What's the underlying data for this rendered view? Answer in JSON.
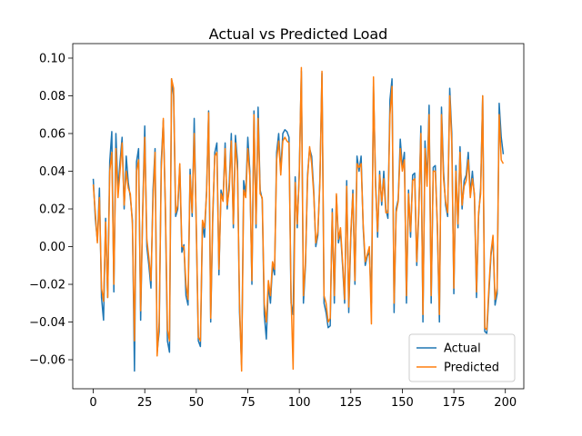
{
  "chart_data": {
    "type": "line",
    "title": "Actual vs Predicted Load",
    "x": [
      0,
      1,
      2,
      3,
      4,
      5,
      6,
      7,
      8,
      9,
      10,
      11,
      12,
      13,
      14,
      15,
      16,
      17,
      18,
      19,
      20,
      21,
      22,
      23,
      24,
      25,
      26,
      27,
      28,
      29,
      30,
      31,
      32,
      33,
      34,
      35,
      36,
      37,
      38,
      39,
      40,
      41,
      42,
      43,
      44,
      45,
      46,
      47,
      48,
      49,
      50,
      51,
      52,
      53,
      54,
      55,
      56,
      57,
      58,
      59,
      60,
      61,
      62,
      63,
      64,
      65,
      66,
      67,
      68,
      69,
      70,
      71,
      72,
      73,
      74,
      75,
      76,
      77,
      78,
      79,
      80,
      81,
      82,
      83,
      84,
      85,
      86,
      87,
      88,
      89,
      90,
      91,
      92,
      93,
      94,
      95,
      96,
      97,
      98,
      99,
      100,
      101,
      102,
      103,
      104,
      105,
      106,
      107,
      108,
      109,
      110,
      111,
      112,
      113,
      114,
      115,
      116,
      117,
      118,
      119,
      120,
      121,
      122,
      123,
      124,
      125,
      126,
      127,
      128,
      129,
      130,
      131,
      132,
      133,
      134,
      135,
      136,
      137,
      138,
      139,
      140,
      141,
      142,
      143,
      144,
      145,
      146,
      147,
      148,
      149,
      150,
      151,
      152,
      153,
      154,
      155,
      156,
      157,
      158,
      159,
      160,
      161,
      162,
      163,
      164,
      165,
      166,
      167,
      168,
      169,
      170,
      171,
      172,
      173,
      174,
      175,
      176,
      177,
      178,
      179,
      180,
      181,
      182,
      183,
      184,
      185,
      186,
      187,
      188,
      189,
      190,
      191,
      192,
      193,
      194,
      195,
      196,
      197,
      198,
      199
    ],
    "series": [
      {
        "name": "Actual",
        "color": "#1f77b4",
        "values": [
          0.036,
          0.015,
          0.003,
          0.031,
          -0.027,
          -0.039,
          0.015,
          -0.027,
          0.045,
          0.061,
          -0.024,
          0.06,
          0.03,
          0.045,
          0.058,
          0.02,
          0.048,
          0.034,
          0.026,
          0.014,
          -0.066,
          0.045,
          0.052,
          -0.039,
          0.02,
          0.064,
          0.0,
          -0.01,
          -0.022,
          0.03,
          0.052,
          -0.056,
          -0.045,
          0.045,
          0.067,
          0.02,
          -0.05,
          -0.056,
          0.089,
          0.08,
          0.016,
          0.02,
          0.043,
          -0.003,
          0.001,
          -0.026,
          -0.031,
          0.041,
          0.016,
          0.068,
          0.01,
          -0.05,
          -0.053,
          0.012,
          0.005,
          0.03,
          0.072,
          -0.04,
          0.015,
          0.05,
          0.055,
          -0.015,
          0.03,
          0.025,
          0.055,
          0.02,
          0.034,
          0.06,
          0.01,
          0.059,
          0.045,
          -0.035,
          -0.063,
          0.035,
          0.028,
          0.058,
          0.04,
          -0.02,
          0.072,
          0.01,
          0.074,
          0.03,
          0.025,
          -0.036,
          -0.049,
          -0.02,
          -0.03,
          -0.01,
          -0.015,
          0.05,
          0.06,
          0.04,
          0.06,
          0.062,
          0.061,
          0.058,
          -0.03,
          -0.036,
          0.037,
          0.01,
          0.04,
          0.093,
          -0.03,
          -0.01,
          0.038,
          0.052,
          0.048,
          0.03,
          0.0,
          0.006,
          0.036,
          0.092,
          -0.03,
          -0.035,
          -0.043,
          -0.042,
          0.02,
          -0.03,
          0.027,
          0.002,
          0.008,
          -0.01,
          -0.03,
          0.035,
          -0.035,
          0.005,
          0.03,
          -0.02,
          0.048,
          0.04,
          0.048,
          0.01,
          -0.01,
          -0.005,
          -0.003,
          -0.03,
          0.085,
          0.035,
          0.005,
          0.04,
          0.022,
          0.04,
          0.02,
          0.015,
          0.078,
          0.089,
          -0.035,
          0.02,
          0.025,
          0.057,
          0.042,
          0.05,
          -0.03,
          0.03,
          0.005,
          0.038,
          0.039,
          -0.01,
          0.018,
          0.064,
          -0.04,
          0.056,
          0.035,
          0.075,
          -0.03,
          0.042,
          0.043,
          0.01,
          -0.04,
          0.074,
          0.04,
          0.022,
          0.016,
          0.084,
          0.06,
          -0.025,
          0.043,
          0.01,
          0.053,
          0.02,
          0.035,
          0.038,
          0.05,
          0.028,
          0.04,
          0.026,
          -0.027,
          0.016,
          0.031,
          0.08,
          -0.045,
          -0.046,
          -0.025,
          -0.005,
          0.005,
          -0.031,
          -0.025,
          0.076,
          0.058,
          0.049
        ]
      },
      {
        "name": "Predicted",
        "color": "#ff7f0e",
        "values": [
          0.033,
          0.018,
          0.002,
          0.026,
          -0.022,
          -0.029,
          0.013,
          -0.027,
          0.04,
          0.05,
          -0.02,
          0.052,
          0.026,
          0.04,
          0.055,
          0.022,
          0.04,
          0.031,
          0.028,
          0.012,
          -0.05,
          0.04,
          0.046,
          -0.034,
          0.018,
          0.058,
          0.004,
          -0.006,
          -0.018,
          0.025,
          0.05,
          -0.058,
          -0.04,
          0.04,
          0.068,
          0.022,
          -0.044,
          -0.05,
          0.089,
          0.084,
          0.018,
          0.022,
          0.044,
          0.0,
          0.0,
          -0.02,
          -0.028,
          0.038,
          0.018,
          0.06,
          0.012,
          -0.048,
          -0.05,
          0.014,
          0.01,
          0.028,
          0.071,
          -0.038,
          0.018,
          0.048,
          0.05,
          -0.012,
          0.028,
          0.024,
          0.052,
          0.022,
          0.03,
          0.056,
          0.012,
          0.055,
          0.04,
          -0.03,
          -0.066,
          0.03,
          0.026,
          0.052,
          0.037,
          -0.018,
          0.07,
          0.012,
          0.068,
          0.028,
          0.026,
          -0.03,
          -0.04,
          -0.018,
          -0.026,
          -0.008,
          -0.012,
          0.046,
          0.056,
          0.038,
          0.056,
          0.058,
          0.056,
          0.055,
          -0.026,
          -0.065,
          0.034,
          0.012,
          0.038,
          0.095,
          -0.026,
          -0.008,
          0.036,
          0.053,
          0.044,
          0.028,
          0.002,
          0.008,
          0.034,
          0.093,
          -0.026,
          -0.03,
          -0.04,
          -0.038,
          0.018,
          -0.026,
          0.028,
          0.004,
          0.01,
          -0.008,
          -0.028,
          0.032,
          -0.032,
          0.008,
          0.028,
          -0.018,
          0.044,
          0.042,
          0.044,
          0.012,
          -0.008,
          -0.004,
          0.0,
          -0.041,
          0.09,
          0.032,
          0.008,
          0.038,
          0.024,
          0.036,
          0.018,
          0.018,
          0.07,
          0.085,
          -0.03,
          0.018,
          0.024,
          0.052,
          0.04,
          0.046,
          -0.026,
          0.028,
          0.008,
          0.035,
          0.036,
          -0.008,
          0.02,
          0.06,
          -0.036,
          0.052,
          0.032,
          0.07,
          -0.026,
          0.04,
          0.04,
          0.012,
          -0.036,
          0.07,
          0.036,
          0.024,
          0.018,
          0.08,
          0.055,
          -0.022,
          0.04,
          0.012,
          0.05,
          0.022,
          0.032,
          0.035,
          0.046,
          0.026,
          0.036,
          0.028,
          -0.024,
          0.018,
          0.028,
          0.08,
          -0.043,
          -0.044,
          -0.022,
          -0.003,
          0.006,
          -0.028,
          -0.022,
          0.07,
          0.046,
          0.044
        ]
      }
    ],
    "xlim": [
      -9.95,
      208.95
    ],
    "ylim": [
      -0.0754,
      0.1077
    ],
    "xticks": [
      0,
      25,
      50,
      75,
      100,
      125,
      150,
      175,
      200
    ],
    "yticks": [
      {
        "value": -0.06,
        "label": "−0.06"
      },
      {
        "value": -0.04,
        "label": "−0.04"
      },
      {
        "value": -0.02,
        "label": "−0.02"
      },
      {
        "value": 0,
        "label": "0.00"
      },
      {
        "value": 0.02,
        "label": "0.02"
      },
      {
        "value": 0.04,
        "label": "0.04"
      },
      {
        "value": 0.06,
        "label": "0.06"
      },
      {
        "value": 0.08,
        "label": "0.08"
      },
      {
        "value": 0.1,
        "label": "0.10"
      }
    ],
    "grid": false,
    "legend": "lower right"
  }
}
